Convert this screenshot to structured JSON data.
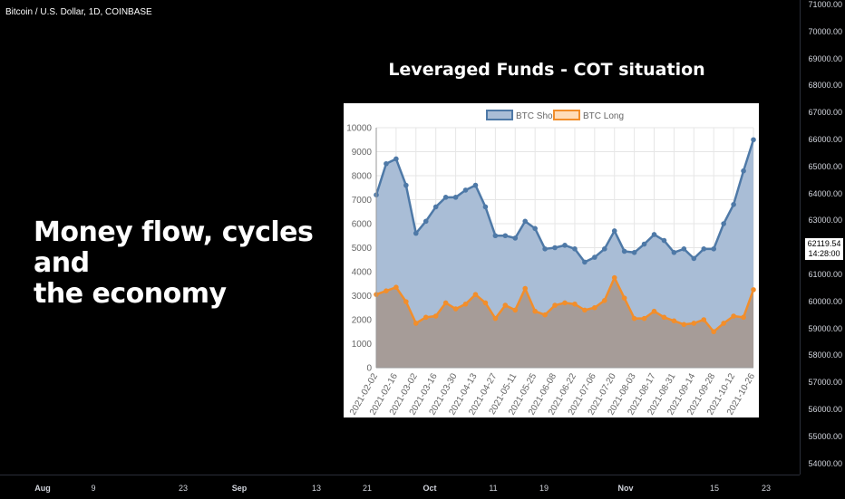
{
  "symbol": {
    "title": "Bitcoin / U.S. Dollar, 1D, COINBASE"
  },
  "headline": {
    "line1": "Money flow, cycles and",
    "line2": "the economy"
  },
  "price_axis": {
    "ticks": [
      "71000.00",
      "70000.00",
      "69000.00",
      "68000.00",
      "67000.00",
      "66000.00",
      "65000.00",
      "64000.00",
      "63000.00",
      "62000.00",
      "61000.00",
      "60000.00",
      "59000.00",
      "58000.00",
      "57000.00",
      "56000.00",
      "55000.00",
      "54000.00"
    ],
    "last_price": "62119.54",
    "countdown": "14:28:00"
  },
  "time_axis": {
    "ticks": [
      {
        "label": "Aug",
        "bold": true
      },
      {
        "label": "9",
        "bold": false
      },
      {
        "label": "23",
        "bold": false
      },
      {
        "label": "Sep",
        "bold": true
      },
      {
        "label": "13",
        "bold": false
      },
      {
        "label": "21",
        "bold": false
      },
      {
        "label": "Oct",
        "bold": true
      },
      {
        "label": "11",
        "bold": false
      },
      {
        "label": "19",
        "bold": false
      },
      {
        "label": "Nov",
        "bold": true
      },
      {
        "label": "15",
        "bold": false
      },
      {
        "label": "23",
        "bold": false
      }
    ]
  },
  "colors": {
    "short_line": "#4e79a7",
    "short_fill": "#a9bdd6",
    "long_line": "#f28e2b",
    "long_fill": "#ffdcb8",
    "overlap_fill": "#a69c98",
    "background": "#000000"
  },
  "chart_data": {
    "type": "area",
    "title": "Leveraged Funds - COT situation",
    "ylim": [
      0,
      10000
    ],
    "yticks": [
      0,
      1000,
      2000,
      3000,
      4000,
      5000,
      6000,
      7000,
      8000,
      9000,
      10000
    ],
    "x": [
      "2021-02-02",
      "2021-02-09",
      "2021-02-16",
      "2021-02-23",
      "2021-03-02",
      "2021-03-09",
      "2021-03-16",
      "2021-03-23",
      "2021-03-30",
      "2021-04-06",
      "2021-04-13",
      "2021-04-20",
      "2021-04-27",
      "2021-05-04",
      "2021-05-11",
      "2021-05-18",
      "2021-05-25",
      "2021-06-01",
      "2021-06-08",
      "2021-06-15",
      "2021-06-22",
      "2021-06-29",
      "2021-07-06",
      "2021-07-13",
      "2021-07-20",
      "2021-07-27",
      "2021-08-03",
      "2021-08-10",
      "2021-08-17",
      "2021-08-24",
      "2021-08-31",
      "2021-09-07",
      "2021-09-14",
      "2021-09-21",
      "2021-09-28",
      "2021-10-05",
      "2021-10-12",
      "2021-10-19",
      "2021-10-26"
    ],
    "x_tick_labels": [
      "2021-02-02",
      "2021-02-16",
      "2021-03-02",
      "2021-03-16",
      "2021-03-30",
      "2021-04-13",
      "2021-04-27",
      "2021-05-11",
      "2021-05-25",
      "2021-06-08",
      "2021-06-22",
      "2021-07-06",
      "2021-07-20",
      "2021-08-03",
      "2021-08-17",
      "2021-08-31",
      "2021-09-14",
      "2021-09-28",
      "2021-10-12",
      "2021-10-26"
    ],
    "series": [
      {
        "name": "BTC Short",
        "values": [
          7200,
          8500,
          8700,
          7600,
          5600,
          6100,
          6700,
          7100,
          7100,
          7400,
          7600,
          6700,
          5500,
          5500,
          5400,
          6100,
          5800,
          4950,
          5000,
          5100,
          4950,
          4400,
          4600,
          4950,
          5700,
          4850,
          4800,
          5150,
          5550,
          5300,
          4800,
          4950,
          4550,
          4950,
          4950,
          6000,
          6800,
          8200,
          9500
        ]
      },
      {
        "name": "BTC Long",
        "values": [
          3050,
          3200,
          3350,
          2750,
          1850,
          2100,
          2150,
          2700,
          2450,
          2650,
          3050,
          2700,
          2050,
          2600,
          2400,
          3300,
          2350,
          2200,
          2600,
          2700,
          2650,
          2400,
          2500,
          2800,
          3750,
          2900,
          2050,
          2050,
          2350,
          2100,
          1950,
          1800,
          1850,
          2000,
          1500,
          1850,
          2150,
          2100,
          3250
        ]
      }
    ],
    "legend_position": "top",
    "grid": true
  }
}
